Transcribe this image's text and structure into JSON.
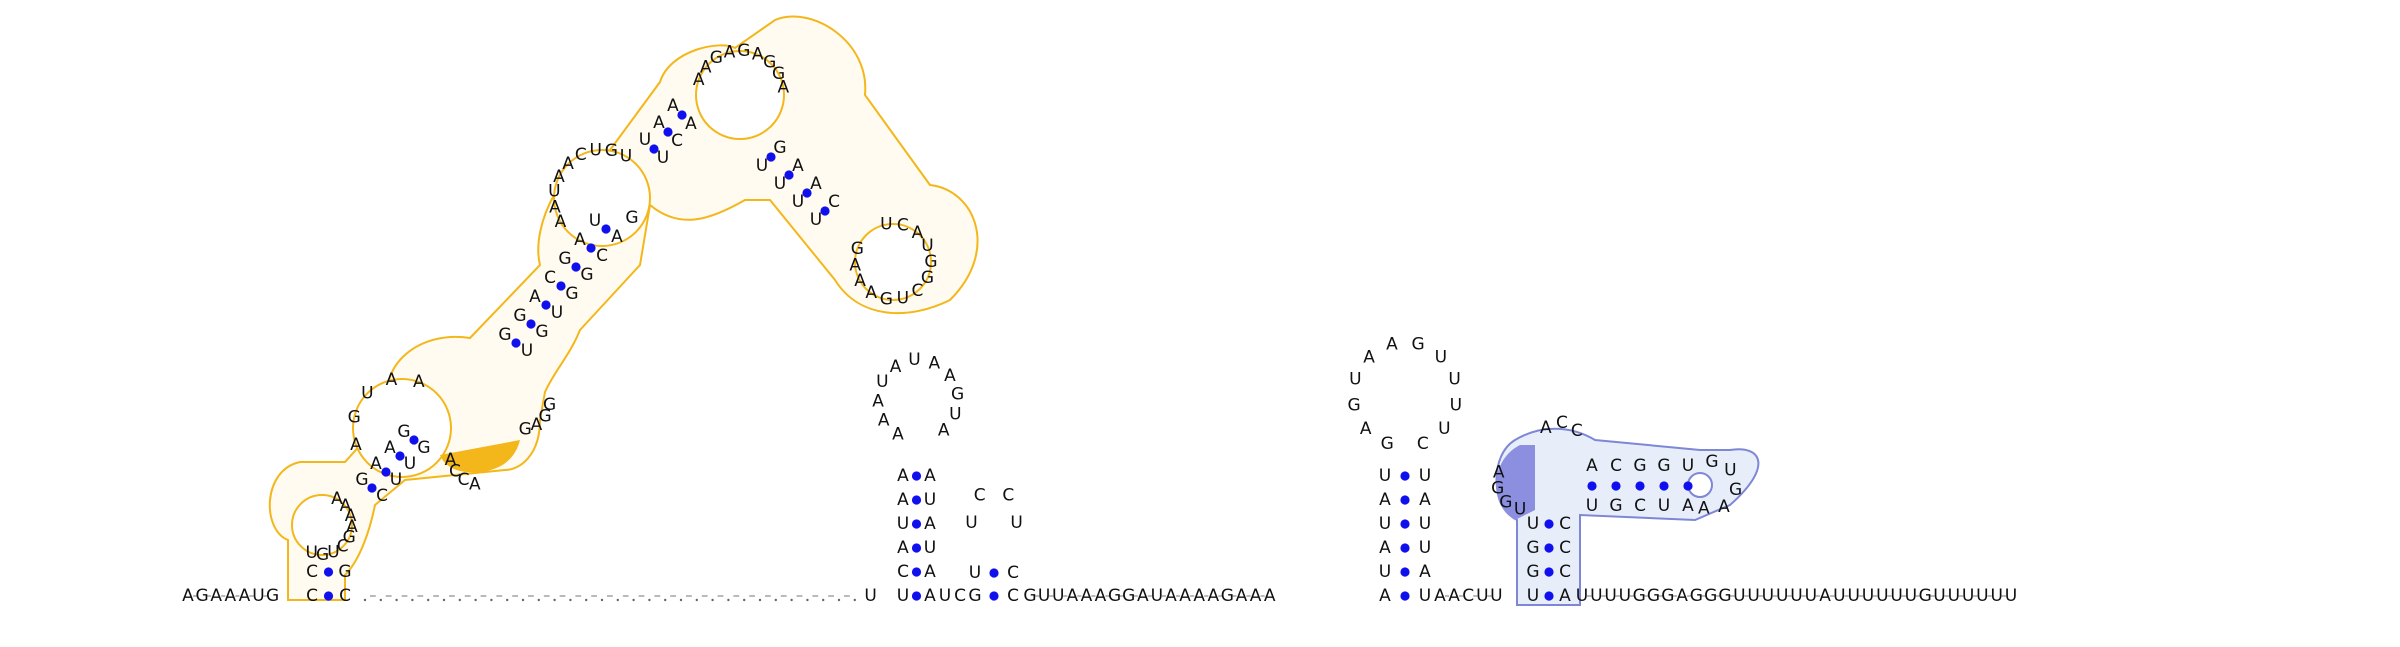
{
  "colors": {
    "highlight_outline": "#f3b71b",
    "highlight_fill": "#fff4d4",
    "highlight_solid": "#f3b71b",
    "highlight2_outline": "#7d87d6",
    "highlight2_fill": "#dde7f8",
    "highlight2_solid": "#8c8fe0",
    "base_pair_dot": "#1010ee",
    "backbone": "#666666",
    "text": "#111111"
  },
  "structure": {
    "sequence_5prime": "AGAAAUG",
    "domain1": {
      "stem_p1_5p": "C",
      "stem_p1_3p": "C",
      "loop_a": "UGUCGAAAA",
      "stem_b_5p": "GAAG",
      "stem_b_3p": "CUUG",
      "loop_b_5p": "AGUAA",
      "stem_c_5p": "GGACGAU",
      "stem_c_3p": "UGUGGCAG",
      "loop_c": "AAUAACUGU",
      "stem_d_5p": "UAA",
      "stem_d_3p": "UCA",
      "loop_d": "AAGAGAGGA",
      "stem_e_5p": "GAAC",
      "stem_e_3p": "UUUU",
      "loop_e": "UCAUGGCUGAAAG",
      "highlight_seq": "ACCA",
      "junction_3p": "GAGG"
    },
    "linker1": "................................",
    "hairpin2": {
      "stem_5p": "UCAUAAUG",
      "loop": "AAAUAUAAGUA",
      "stem_3p": "AAUAUACU"
    },
    "hairpin3": {
      "stem_5p": "GU",
      "loop": "UCCU",
      "stem_3p": "CC"
    },
    "linker2": "GUUAAAGGAUAAAAGAAA",
    "hairpin4": {
      "stem_5p": "AUAUAU",
      "loop": "GAGUAAGUUUUC",
      "stem_3p": "UAUUAU"
    },
    "linker3": "AACUU",
    "domain2": {
      "stem_outer_5p": "UGGU",
      "stem_outer_3p": "ACCC",
      "loop_5p_highlight": "UGGA",
      "loop_top": "ACC",
      "stem_inner_5p": "ACGGU",
      "stem_inner_3p": "UGCUA",
      "loop_inner": "GUGAA"
    },
    "sequence_3prime": "UUUUGGGAGGGUUUUUUAUUUUUUGUUUUUU"
  }
}
